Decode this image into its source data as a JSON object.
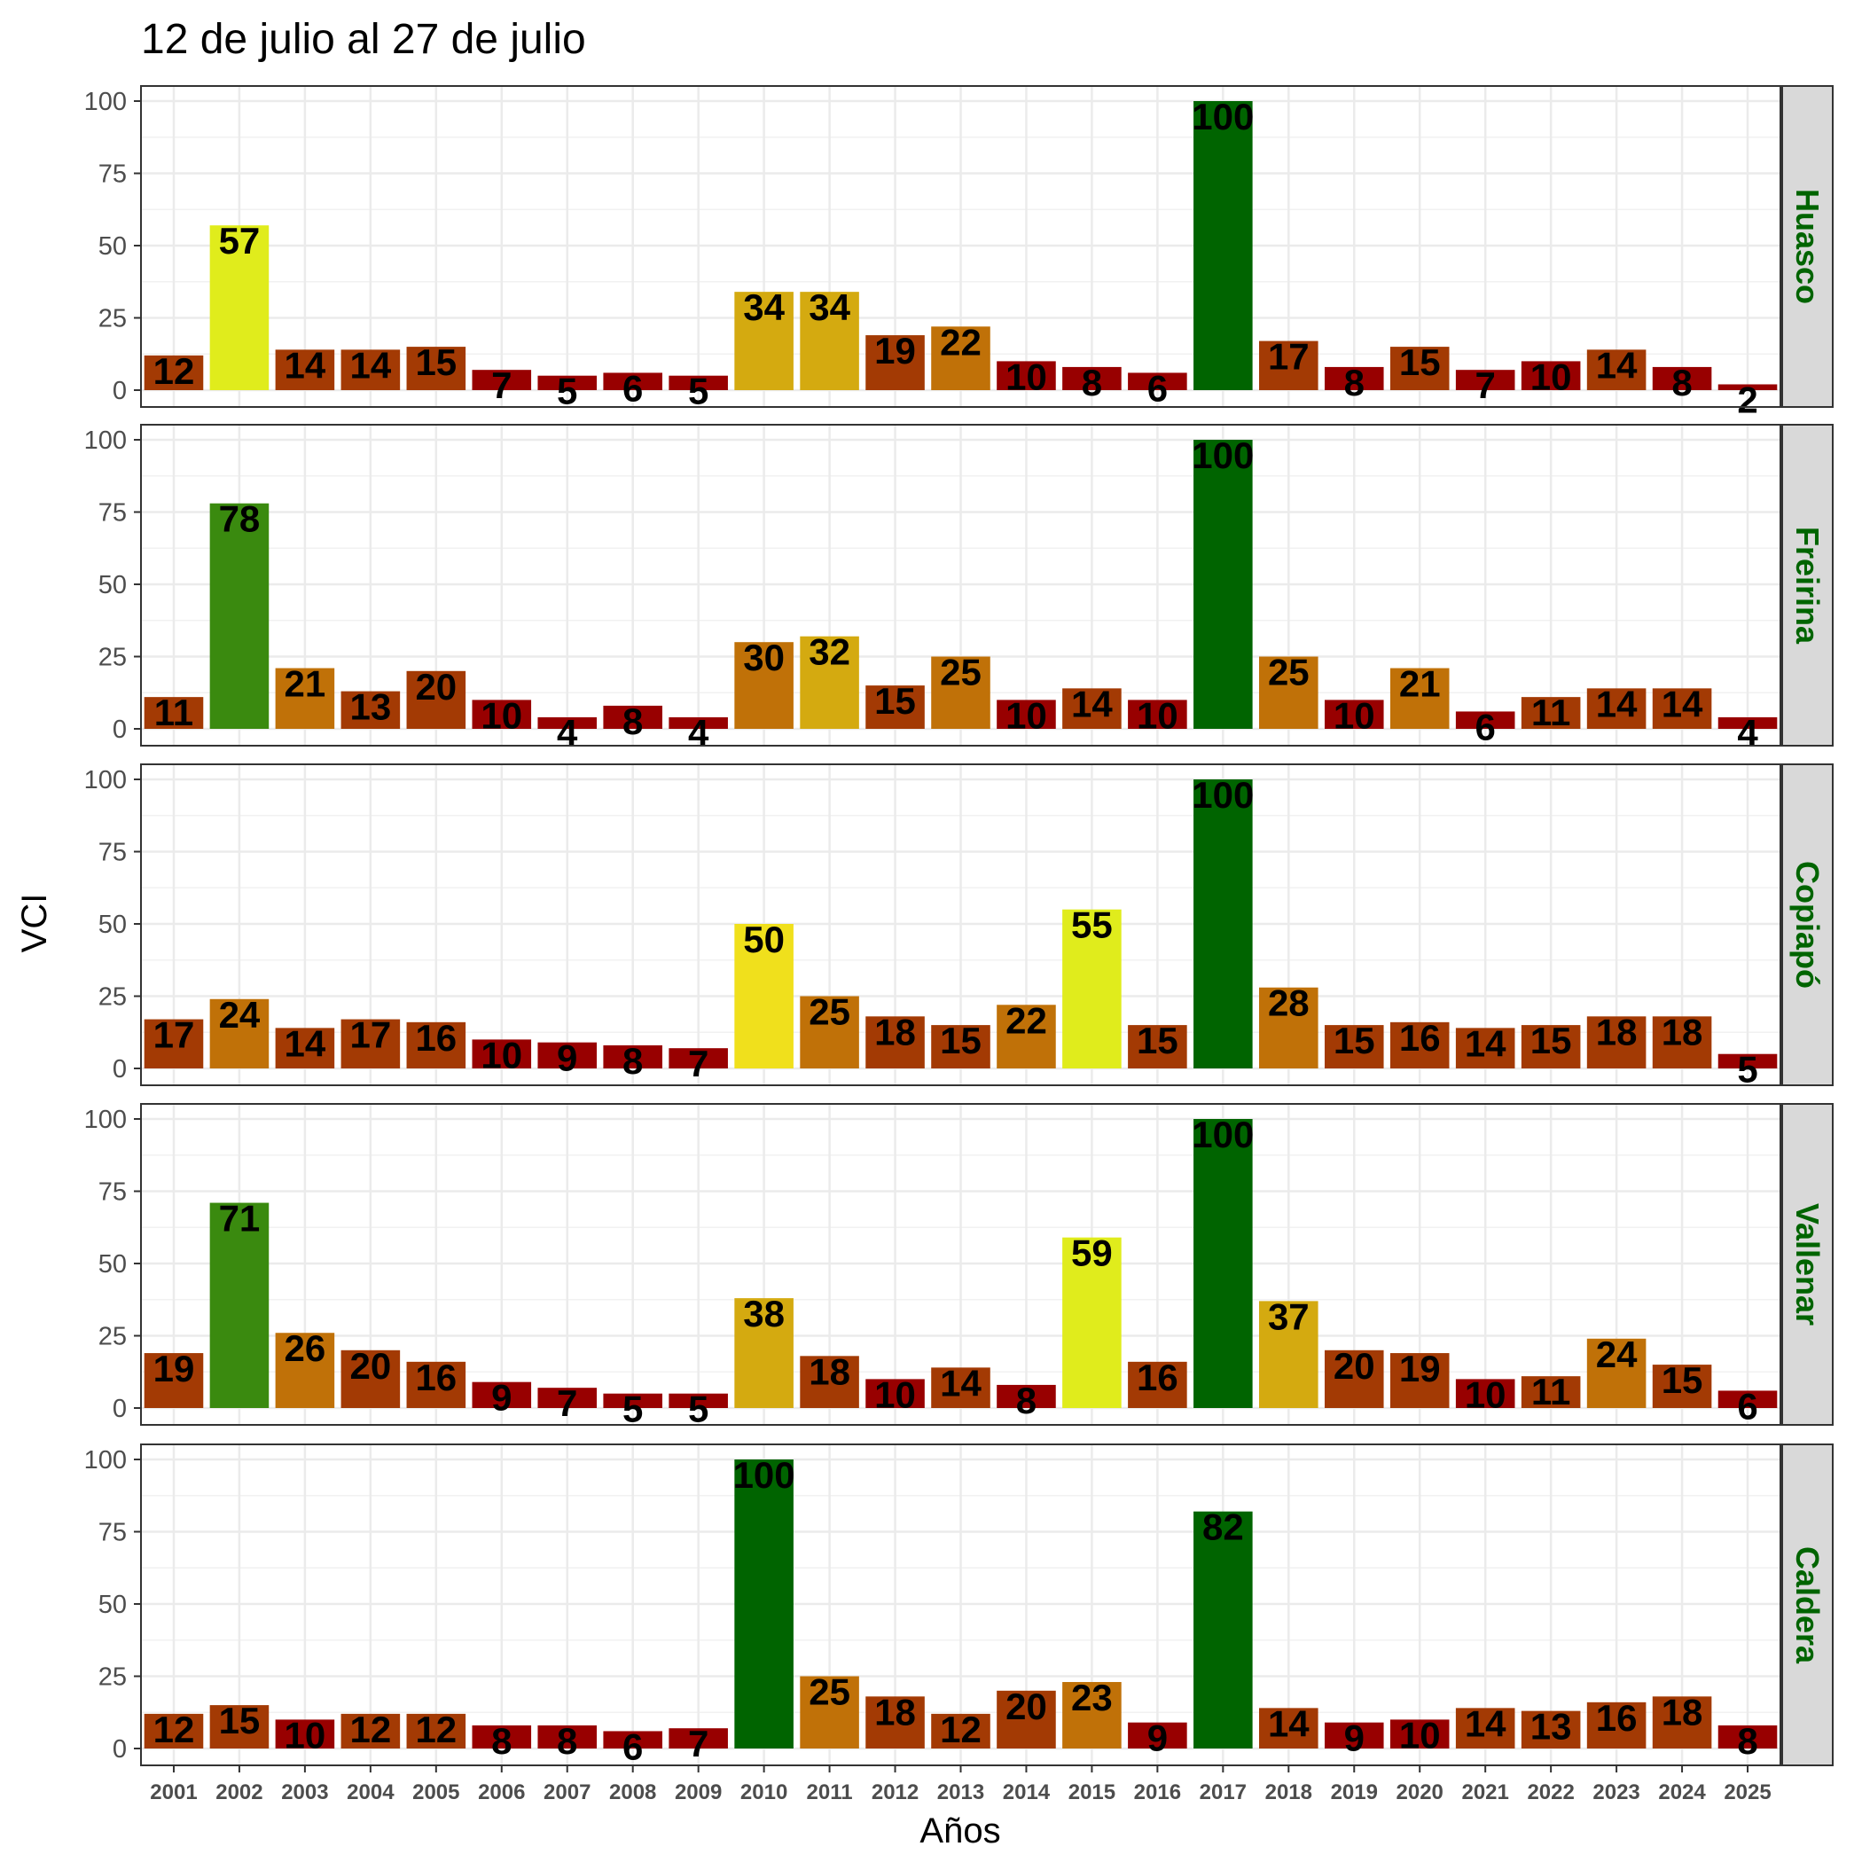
{
  "chart_data": {
    "type": "bar",
    "title": "12 de julio al 27 de julio",
    "xlabel": "Años",
    "ylabel": "VCI",
    "ylim": [
      0,
      100
    ],
    "yticks": [
      0,
      25,
      50,
      75,
      100
    ],
    "grid": true,
    "strip_label_color": "#006400",
    "categories": [
      "2001",
      "2002",
      "2003",
      "2004",
      "2005",
      "2006",
      "2007",
      "2008",
      "2009",
      "2010",
      "2011",
      "2012",
      "2013",
      "2014",
      "2015",
      "2016",
      "2017",
      "2018",
      "2019",
      "2020",
      "2021",
      "2022",
      "2023",
      "2024",
      "2025"
    ],
    "series": [
      {
        "name": "Huasco",
        "values": [
          12,
          57,
          14,
          14,
          15,
          7,
          5,
          6,
          5,
          34,
          34,
          19,
          22,
          10,
          8,
          6,
          100,
          17,
          8,
          15,
          7,
          10,
          14,
          8,
          2
        ]
      },
      {
        "name": "Freirina",
        "values": [
          11,
          78,
          21,
          13,
          20,
          10,
          4,
          8,
          4,
          30,
          32,
          15,
          25,
          10,
          14,
          10,
          100,
          25,
          10,
          21,
          6,
          11,
          14,
          14,
          4
        ]
      },
      {
        "name": "Copiapó",
        "values": [
          17,
          24,
          14,
          17,
          16,
          10,
          9,
          8,
          7,
          50,
          25,
          18,
          15,
          22,
          55,
          15,
          100,
          28,
          15,
          16,
          14,
          15,
          18,
          18,
          5
        ]
      },
      {
        "name": "Vallenar",
        "values": [
          19,
          71,
          26,
          20,
          16,
          9,
          7,
          5,
          5,
          38,
          18,
          10,
          14,
          8,
          59,
          16,
          100,
          37,
          20,
          19,
          10,
          11,
          24,
          15,
          6
        ]
      },
      {
        "name": "Caldera",
        "values": [
          12,
          15,
          10,
          12,
          12,
          8,
          8,
          6,
          7,
          100,
          25,
          18,
          12,
          20,
          23,
          9,
          82,
          14,
          9,
          10,
          14,
          13,
          16,
          18,
          8
        ]
      }
    ]
  }
}
